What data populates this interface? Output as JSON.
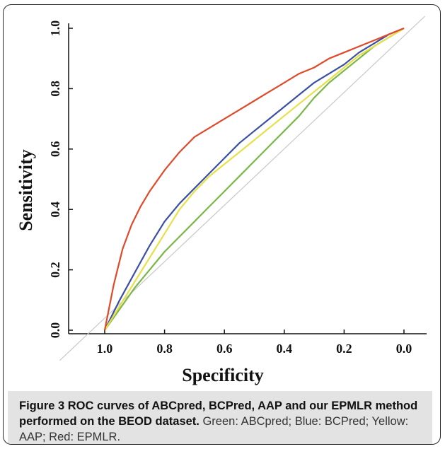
{
  "chart_data": {
    "type": "line",
    "xlabel": "Specificity",
    "ylabel": "Sensitivity",
    "x_reversed": true,
    "xlim": [
      1.0,
      0.0
    ],
    "ylim": [
      0.0,
      1.0
    ],
    "xticks": [
      1.0,
      0.8,
      0.6,
      0.4,
      0.2,
      0.0
    ],
    "yticks": [
      0.0,
      0.2,
      0.4,
      0.6,
      0.8,
      1.0
    ],
    "xtick_labels": [
      "1.0",
      "0.8",
      "0.6",
      "0.4",
      "0.2",
      "0.0"
    ],
    "ytick_labels": [
      "0.0",
      "0.2",
      "0.4",
      "0.6",
      "0.8",
      "1.0"
    ],
    "diagonal_reference": true,
    "series": [
      {
        "color": "#7ab648",
        "x": [
          1.0,
          0.95,
          0.9,
          0.85,
          0.8,
          0.75,
          0.7,
          0.65,
          0.6,
          0.55,
          0.5,
          0.45,
          0.4,
          0.35,
          0.3,
          0.25,
          0.2,
          0.15,
          0.1,
          0.05,
          0.0
        ],
        "y": [
          0.0,
          0.07,
          0.14,
          0.2,
          0.26,
          0.31,
          0.36,
          0.41,
          0.46,
          0.51,
          0.56,
          0.61,
          0.66,
          0.71,
          0.77,
          0.82,
          0.86,
          0.9,
          0.94,
          0.97,
          1.0
        ]
      },
      {
        "color": "#3a4fa3",
        "x": [
          1.0,
          0.95,
          0.9,
          0.85,
          0.8,
          0.75,
          0.7,
          0.65,
          0.6,
          0.55,
          0.5,
          0.45,
          0.4,
          0.35,
          0.3,
          0.25,
          0.2,
          0.15,
          0.1,
          0.05,
          0.0
        ],
        "y": [
          0.0,
          0.1,
          0.19,
          0.28,
          0.36,
          0.42,
          0.47,
          0.52,
          0.57,
          0.62,
          0.66,
          0.7,
          0.74,
          0.78,
          0.82,
          0.85,
          0.88,
          0.92,
          0.95,
          0.98,
          1.0
        ]
      },
      {
        "color": "#e6e04a",
        "x": [
          1.0,
          0.95,
          0.9,
          0.85,
          0.8,
          0.75,
          0.7,
          0.65,
          0.6,
          0.55,
          0.5,
          0.45,
          0.4,
          0.35,
          0.3,
          0.25,
          0.2,
          0.15,
          0.1,
          0.05,
          0.0
        ],
        "y": [
          0.0,
          0.08,
          0.16,
          0.24,
          0.32,
          0.4,
          0.46,
          0.51,
          0.55,
          0.59,
          0.63,
          0.67,
          0.71,
          0.75,
          0.79,
          0.83,
          0.87,
          0.91,
          0.94,
          0.97,
          1.0
        ]
      },
      {
        "color": "#e04a2a",
        "x": [
          1.0,
          0.97,
          0.94,
          0.91,
          0.88,
          0.85,
          0.8,
          0.75,
          0.7,
          0.65,
          0.6,
          0.55,
          0.5,
          0.45,
          0.4,
          0.35,
          0.3,
          0.25,
          0.2,
          0.15,
          0.1,
          0.05,
          0.0
        ],
        "y": [
          0.0,
          0.15,
          0.27,
          0.35,
          0.41,
          0.46,
          0.53,
          0.59,
          0.64,
          0.67,
          0.7,
          0.73,
          0.76,
          0.79,
          0.82,
          0.85,
          0.87,
          0.9,
          0.92,
          0.94,
          0.96,
          0.98,
          1.0
        ]
      }
    ]
  },
  "caption": {
    "bold": "Figure 3 ROC curves of ABCpred, BCPred, AAP and our EPMLR method performed on the BEOD dataset.",
    "normal": " Green: ABCpred; Blue: BCPred; Yellow: AAP; Red: EPMLR."
  }
}
